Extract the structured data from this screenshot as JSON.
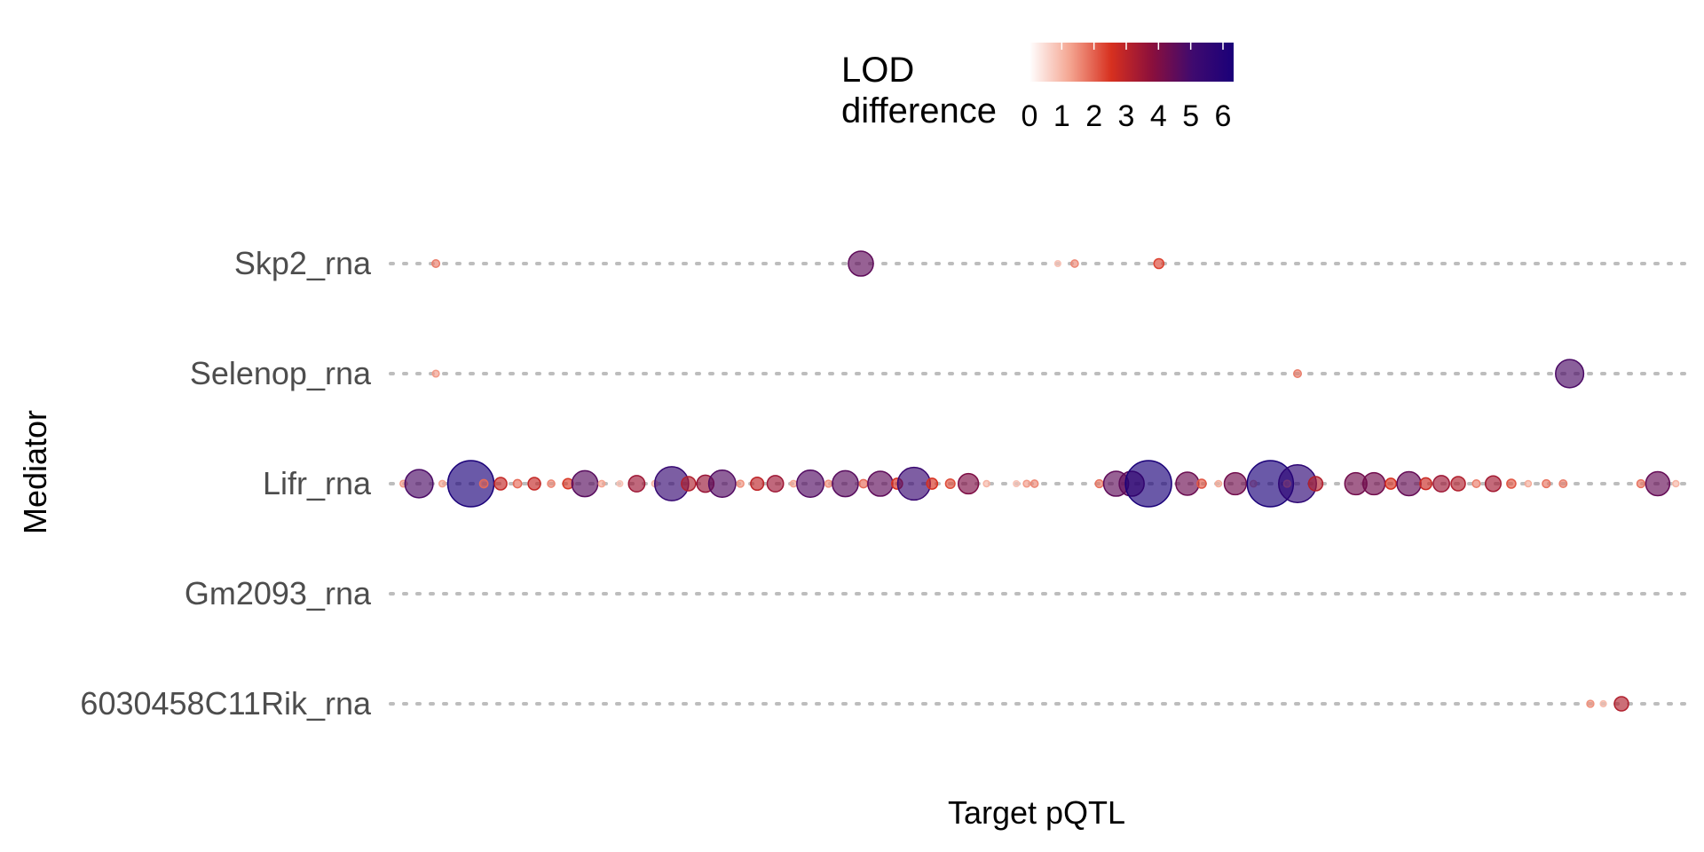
{
  "chart_data": {
    "type": "scatter",
    "xlabel": "Target pQTL",
    "ylabel": "Mediator",
    "grid": "dotted horizontal lines per mediator",
    "legend": {
      "title_line1": "LOD",
      "title_line2": "difference",
      "placement": "top",
      "ticks": [
        "0",
        "1",
        "2",
        "3",
        "4",
        "5",
        "6"
      ],
      "range": [
        0,
        6
      ],
      "colors": [
        "#ffffff",
        "#f4a490",
        "#d7301f",
        "#8b0f3c",
        "#3f0a6f",
        "#1a0079"
      ]
    },
    "categories": [
      "Skp2_rna",
      "Selenop_rna",
      "Lifr_rna",
      "Gm2093_rna",
      "6030458C11Rik_rna"
    ],
    "xlim": [
      0,
      100
    ],
    "series": [
      {
        "mediator": "Skp2_rna",
        "x": [
          3.5,
          36.3,
          51.5,
          52.8,
          59.3
        ],
        "lod": [
          1.6,
          4.3,
          0.8,
          1.5,
          2.2
        ]
      },
      {
        "mediator": "Selenop_rna",
        "x": [
          3.5,
          70.0,
          91.0
        ],
        "lod": [
          1.3,
          1.6,
          4.6
        ]
      },
      {
        "mediator": "Lifr_rna",
        "x": [
          1.0,
          2.2,
          6.2,
          4.0,
          7.2,
          8.5,
          9.8,
          11.1,
          12.4,
          13.7,
          15.0,
          16.3,
          17.7,
          19.0,
          20.4,
          21.7,
          23.0,
          24.3,
          25.6,
          27.0,
          28.3,
          29.7,
          31.1,
          32.4,
          33.8,
          35.1,
          36.5,
          37.8,
          39.1,
          40.4,
          41.8,
          43.2,
          44.6,
          46.0,
          48.3,
          49.1,
          49.7,
          54.7,
          56.0,
          57.2,
          58.5,
          61.5,
          62.6,
          63.9,
          65.2,
          66.6,
          67.9,
          69.2,
          70.0,
          71.4,
          74.5,
          75.9,
          77.2,
          78.6,
          79.9,
          81.1,
          82.4,
          83.8,
          85.1,
          86.5,
          87.8,
          89.2,
          90.5,
          96.5,
          97.8,
          99.2
        ],
        "lod": [
          1.3,
          4.6,
          6.0,
          1.2,
          1.8,
          2.7,
          1.8,
          2.7,
          1.5,
          2.3,
          4.4,
          1.2,
          0.8,
          3.3,
          1.0,
          5.1,
          3.0,
          3.4,
          4.5,
          1.4,
          2.8,
          3.3,
          1.2,
          4.5,
          1.4,
          4.4,
          1.8,
          4.3,
          2.4,
          5.0,
          2.4,
          2.1,
          3.8,
          1.0,
          0.8,
          1.3,
          1.5,
          1.7,
          4.3,
          4.3,
          6.0,
          4.1,
          2.0,
          1.1,
          4.0,
          1.2,
          6.0,
          1.4,
          5.4,
          3.0,
          4.0,
          4.0,
          2.4,
          4.2,
          2.6,
          3.3,
          3.0,
          1.6,
          3.2,
          2.0,
          1.1,
          1.7,
          1.6,
          1.7,
          4.2,
          1.0
        ]
      },
      {
        "mediator": "Gm2093_rna",
        "x": [],
        "lod": []
      },
      {
        "mediator": "6030458C11Rik_rna",
        "x": [
          92.6,
          93.6,
          95.0
        ],
        "lod": [
          1.4,
          0.9,
          3.0
        ]
      }
    ]
  }
}
